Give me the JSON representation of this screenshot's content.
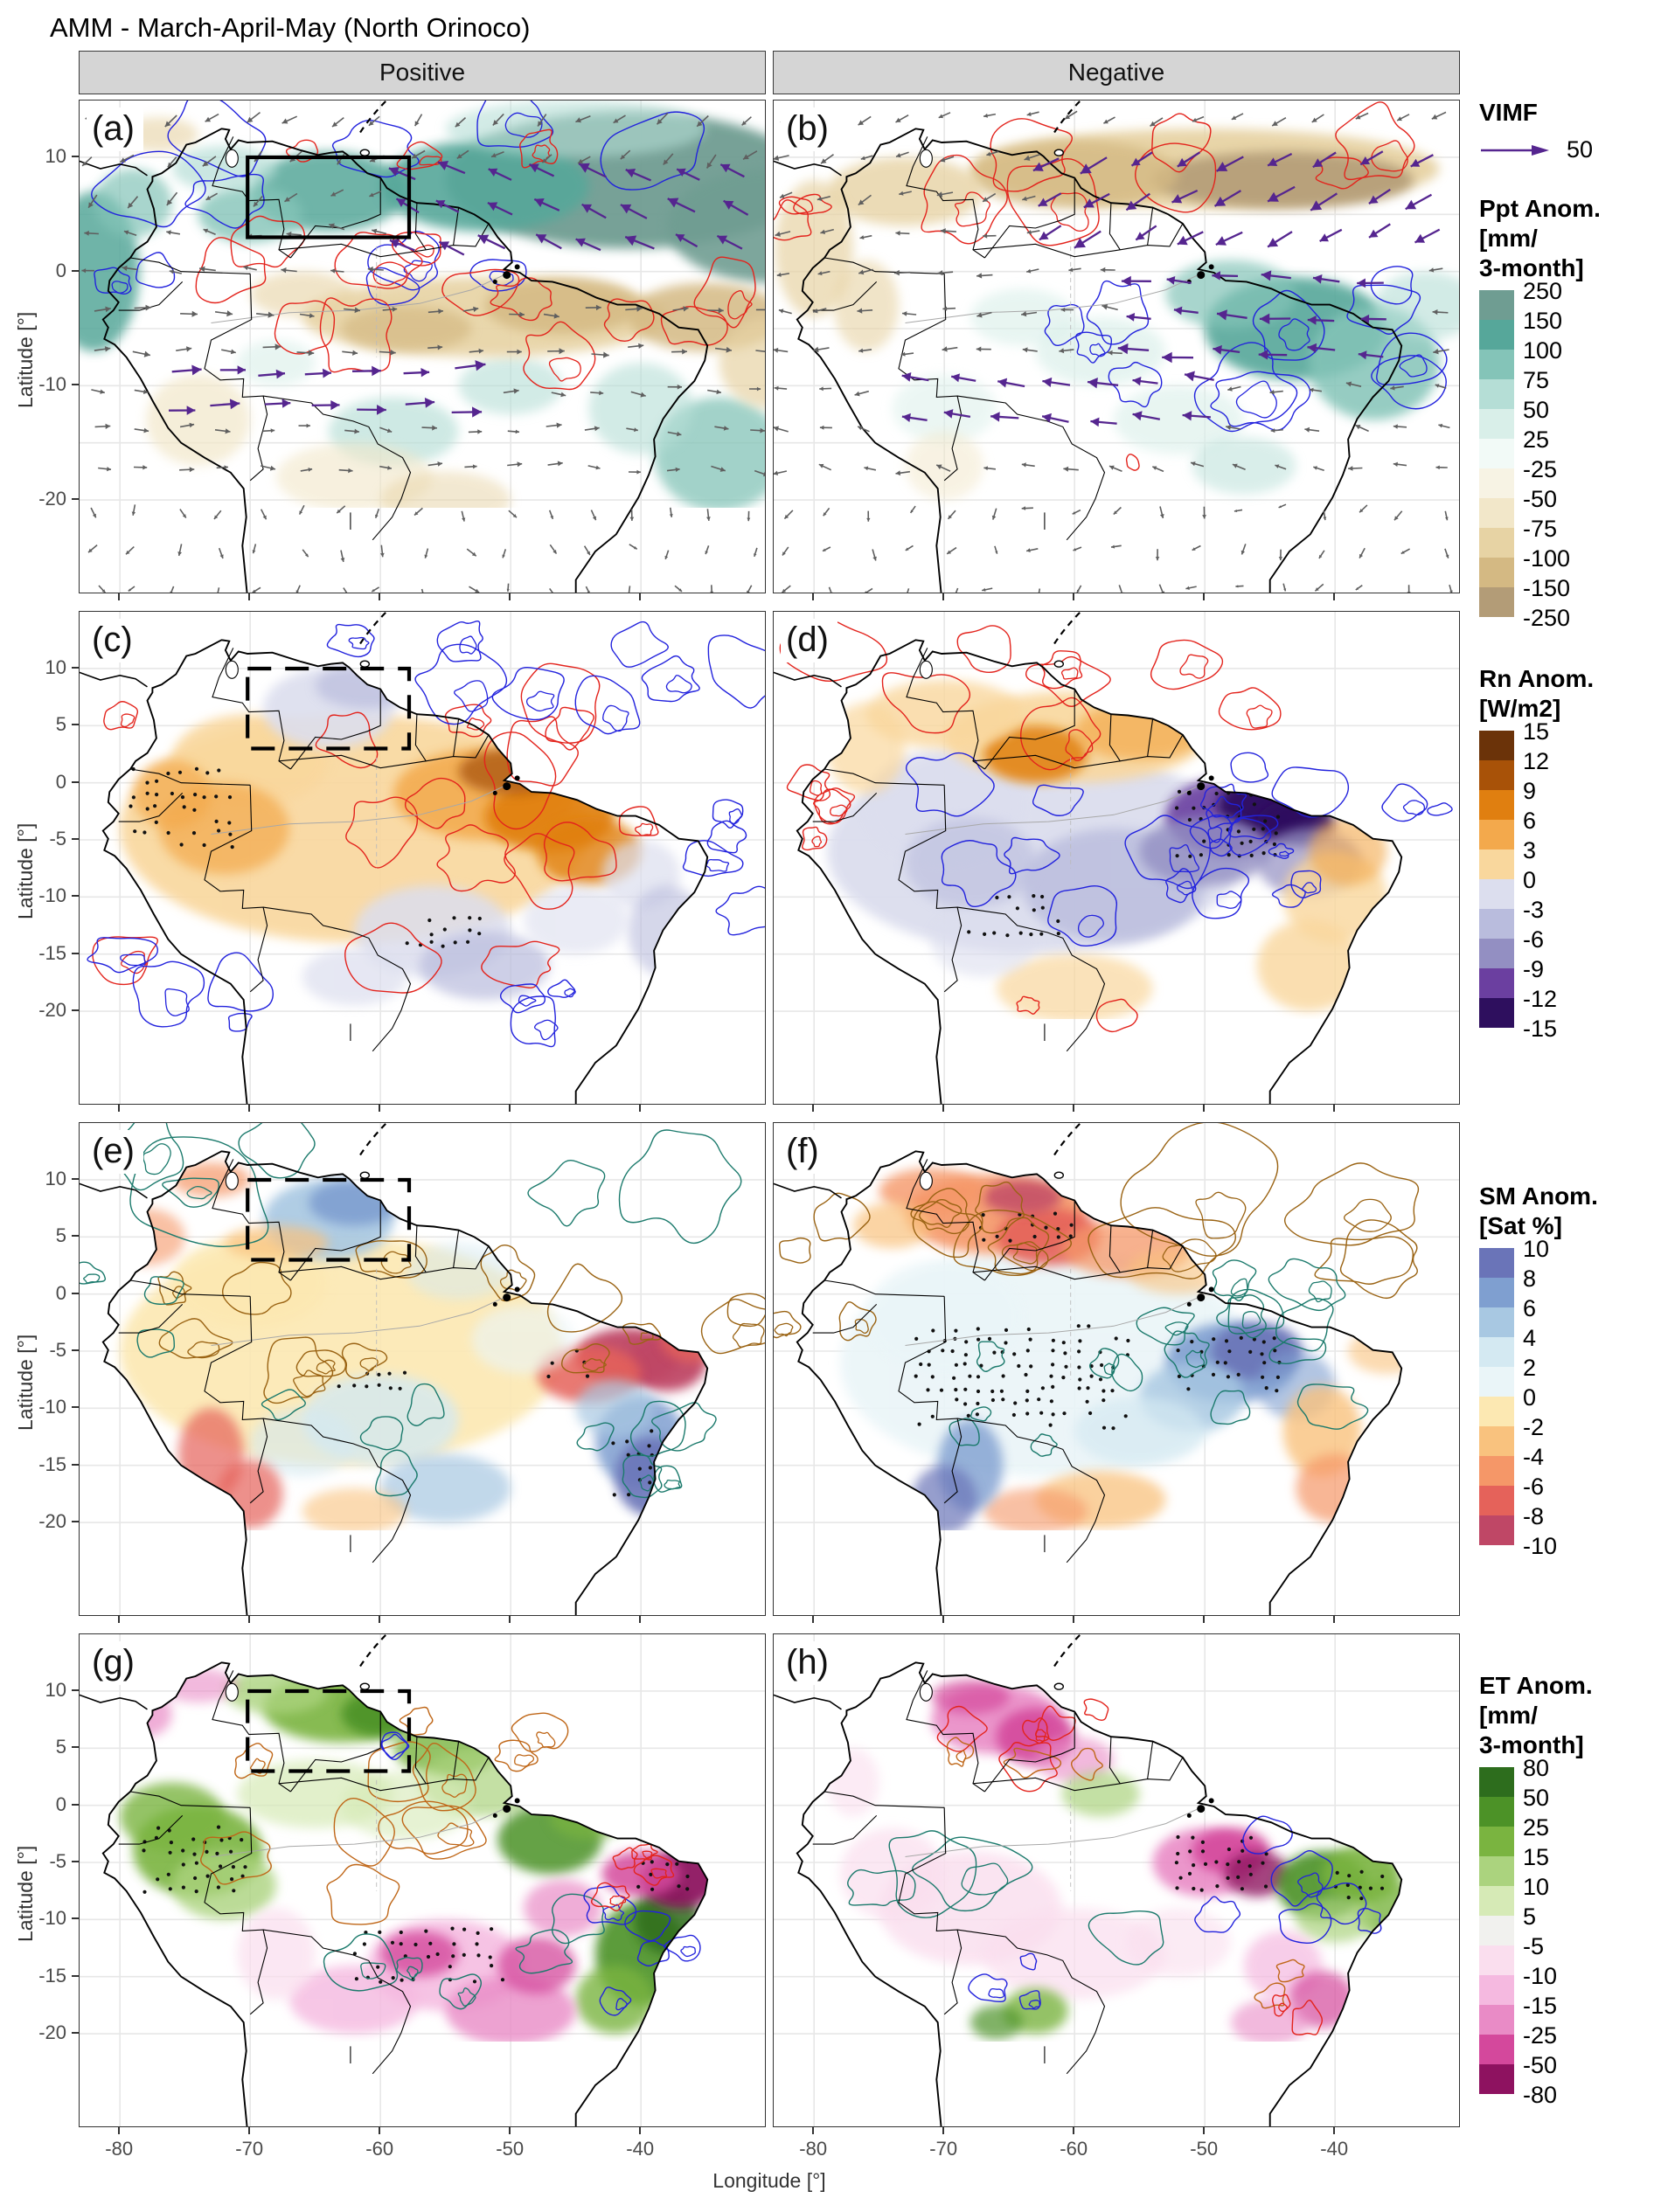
{
  "title": "AMM - March-April-May (North Orinoco)",
  "columns": [
    "Positive",
    "Negative"
  ],
  "axis": {
    "x_title": "Longitude [°]",
    "y_title": "Latitude [°]",
    "x_ticks": [
      "-80",
      "-70",
      "-60",
      "-50",
      "-40"
    ],
    "y_ticks_row1": [
      "10",
      "0",
      "-10",
      "-20"
    ],
    "y_ticks": [
      "10",
      "5",
      "0",
      "-5",
      "-10",
      "-15",
      "-20"
    ]
  },
  "vimf": {
    "title": "VIMF",
    "value": "50",
    "arrow_color": "#55258f"
  },
  "legends": [
    {
      "key": "ppt",
      "title_lines": [
        "Ppt Anom.",
        "[mm/",
        "3-month]"
      ],
      "tick_labels": [
        "250",
        "150",
        "100",
        "75",
        "50",
        "25",
        "-25",
        "-50",
        "-75",
        "-100",
        "-150",
        "-250"
      ],
      "colors": [
        "#6f9d92",
        "#56a79a",
        "#84c4b8",
        "#b5ded6",
        "#d9efe9",
        "#f2faf7",
        "#f7f3e4",
        "#f2e7c9",
        "#e7d3a4",
        "#d4b983",
        "#b39c77"
      ]
    },
    {
      "key": "rn",
      "title_lines": [
        "Rn Anom.",
        "[W/m2]"
      ],
      "tick_labels": [
        "15",
        "12",
        "9",
        "6",
        "3",
        "0",
        "-3",
        "-6",
        "-9",
        "-12",
        "-15"
      ],
      "colors": [
        "#6b3309",
        "#a85208",
        "#e07f10",
        "#f3a94c",
        "#f9d79d",
        "#dcdeee",
        "#b9bcdd",
        "#938fc2",
        "#6b3fa0",
        "#2e0f5e"
      ]
    },
    {
      "key": "sm",
      "title_lines": [
        "SM Anom.",
        "[Sat %]"
      ],
      "tick_labels": [
        "10",
        "8",
        "6",
        "4",
        "2",
        "0",
        "-2",
        "-4",
        "-6",
        "-8",
        "-10"
      ],
      "colors": [
        "#6a74b8",
        "#7f9fd0",
        "#a8c8e2",
        "#d4e9f2",
        "#eaf5f8",
        "#fce8b2",
        "#f9c27e",
        "#f59768",
        "#e5625a",
        "#bf4766"
      ]
    },
    {
      "key": "et",
      "title_lines": [
        "ET Anom.",
        "[mm/",
        "3-month]"
      ],
      "tick_labels": [
        "80",
        "50",
        "25",
        "15",
        "10",
        "5",
        "-5",
        "-10",
        "-15",
        "-25",
        "-50",
        "-80"
      ],
      "colors": [
        "#2d6d1d",
        "#4c9227",
        "#7ab440",
        "#abd37e",
        "#d6eab6",
        "#f1f1ee",
        "#fadeee",
        "#f5b9e0",
        "#e98bc6",
        "#d4489c",
        "#8e1260"
      ]
    }
  ],
  "panels": [
    {
      "label": "(a)",
      "variable": "Ppt",
      "phase": "Positive",
      "row": 0,
      "col": 0,
      "box": "solid"
    },
    {
      "label": "(b)",
      "variable": "Ppt",
      "phase": "Negative",
      "row": 0,
      "col": 1,
      "box": "none"
    },
    {
      "label": "(c)",
      "variable": "Rn",
      "phase": "Positive",
      "row": 1,
      "col": 0,
      "box": "dashed"
    },
    {
      "label": "(d)",
      "variable": "Rn",
      "phase": "Negative",
      "row": 1,
      "col": 1,
      "box": "none"
    },
    {
      "label": "(e)",
      "variable": "SM",
      "phase": "Positive",
      "row": 2,
      "col": 0,
      "box": "dashed"
    },
    {
      "label": "(f)",
      "variable": "SM",
      "phase": "Negative",
      "row": 2,
      "col": 1,
      "box": "none"
    },
    {
      "label": "(g)",
      "variable": "ET",
      "phase": "Positive",
      "row": 3,
      "col": 0,
      "box": "dashed"
    },
    {
      "label": "(h)",
      "variable": "ET",
      "phase": "Negative",
      "row": 3,
      "col": 1,
      "box": "none"
    }
  ],
  "map_style": {
    "coastline": "#000000",
    "gridline": "#e7e7e7",
    "box": "#000000",
    "gray_arrow": "#5f5f5f",
    "contour_red": "#e3231c",
    "contour_blue": "#2222dd",
    "contour_teal": "#1b7a6c",
    "contour_brown": "#9a6313",
    "contour_orange": "#bf6617",
    "stipple": "#111111"
  },
  "chart_data": {
    "type": "heatmap",
    "title": "AMM - March-April-May (North Orinoco)",
    "facets": [
      "Positive",
      "Negative"
    ],
    "x_label": "Longitude [°]",
    "y_label": "Latitude [°]",
    "x_ticks": [
      -80,
      -70,
      -60,
      -50,
      -40
    ],
    "y_ticks": [
      10,
      5,
      0,
      -5,
      -10,
      -15,
      -20
    ],
    "x_range": [
      -83,
      -32
    ],
    "y_range": [
      -28,
      15
    ],
    "vimf_reference_vector": 50,
    "rows": [
      {
        "panels": [
          "a",
          "b"
        ],
        "variable": "Ppt Anom.",
        "units": "mm/3-month",
        "scale_breaks": [
          250,
          150,
          100,
          75,
          50,
          25,
          -25,
          -50,
          -75,
          -100,
          -150,
          -250
        ],
        "overlays": [
          "VIMF vectors (gray and purple arrows)",
          "red/blue significance contours",
          "solid North Orinoco box on positive panel"
        ]
      },
      {
        "panels": [
          "c",
          "d"
        ],
        "variable": "Rn Anom.",
        "units": "W/m2",
        "scale_breaks": [
          15,
          12,
          9,
          6,
          3,
          0,
          -3,
          -6,
          -9,
          -12,
          -15
        ],
        "overlays": [
          "red/blue contours",
          "stippling",
          "dashed North Orinoco box on positive panel"
        ]
      },
      {
        "panels": [
          "e",
          "f"
        ],
        "variable": "SM Anom.",
        "units": "Sat %",
        "scale_breaks": [
          10,
          8,
          6,
          4,
          2,
          0,
          -2,
          -4,
          -6,
          -8,
          -10
        ],
        "overlays": [
          "teal/brown contours",
          "stippling",
          "dashed North Orinoco box on positive panel"
        ]
      },
      {
        "panels": [
          "g",
          "h"
        ],
        "variable": "ET Anom.",
        "units": "mm/3-month",
        "scale_breaks": [
          80,
          50,
          25,
          15,
          10,
          5,
          -5,
          -10,
          -15,
          -25,
          -50,
          -80
        ],
        "overlays": [
          "orange/teal/blue/red contours",
          "stippling",
          "dashed North Orinoco box on positive panel"
        ]
      }
    ]
  }
}
